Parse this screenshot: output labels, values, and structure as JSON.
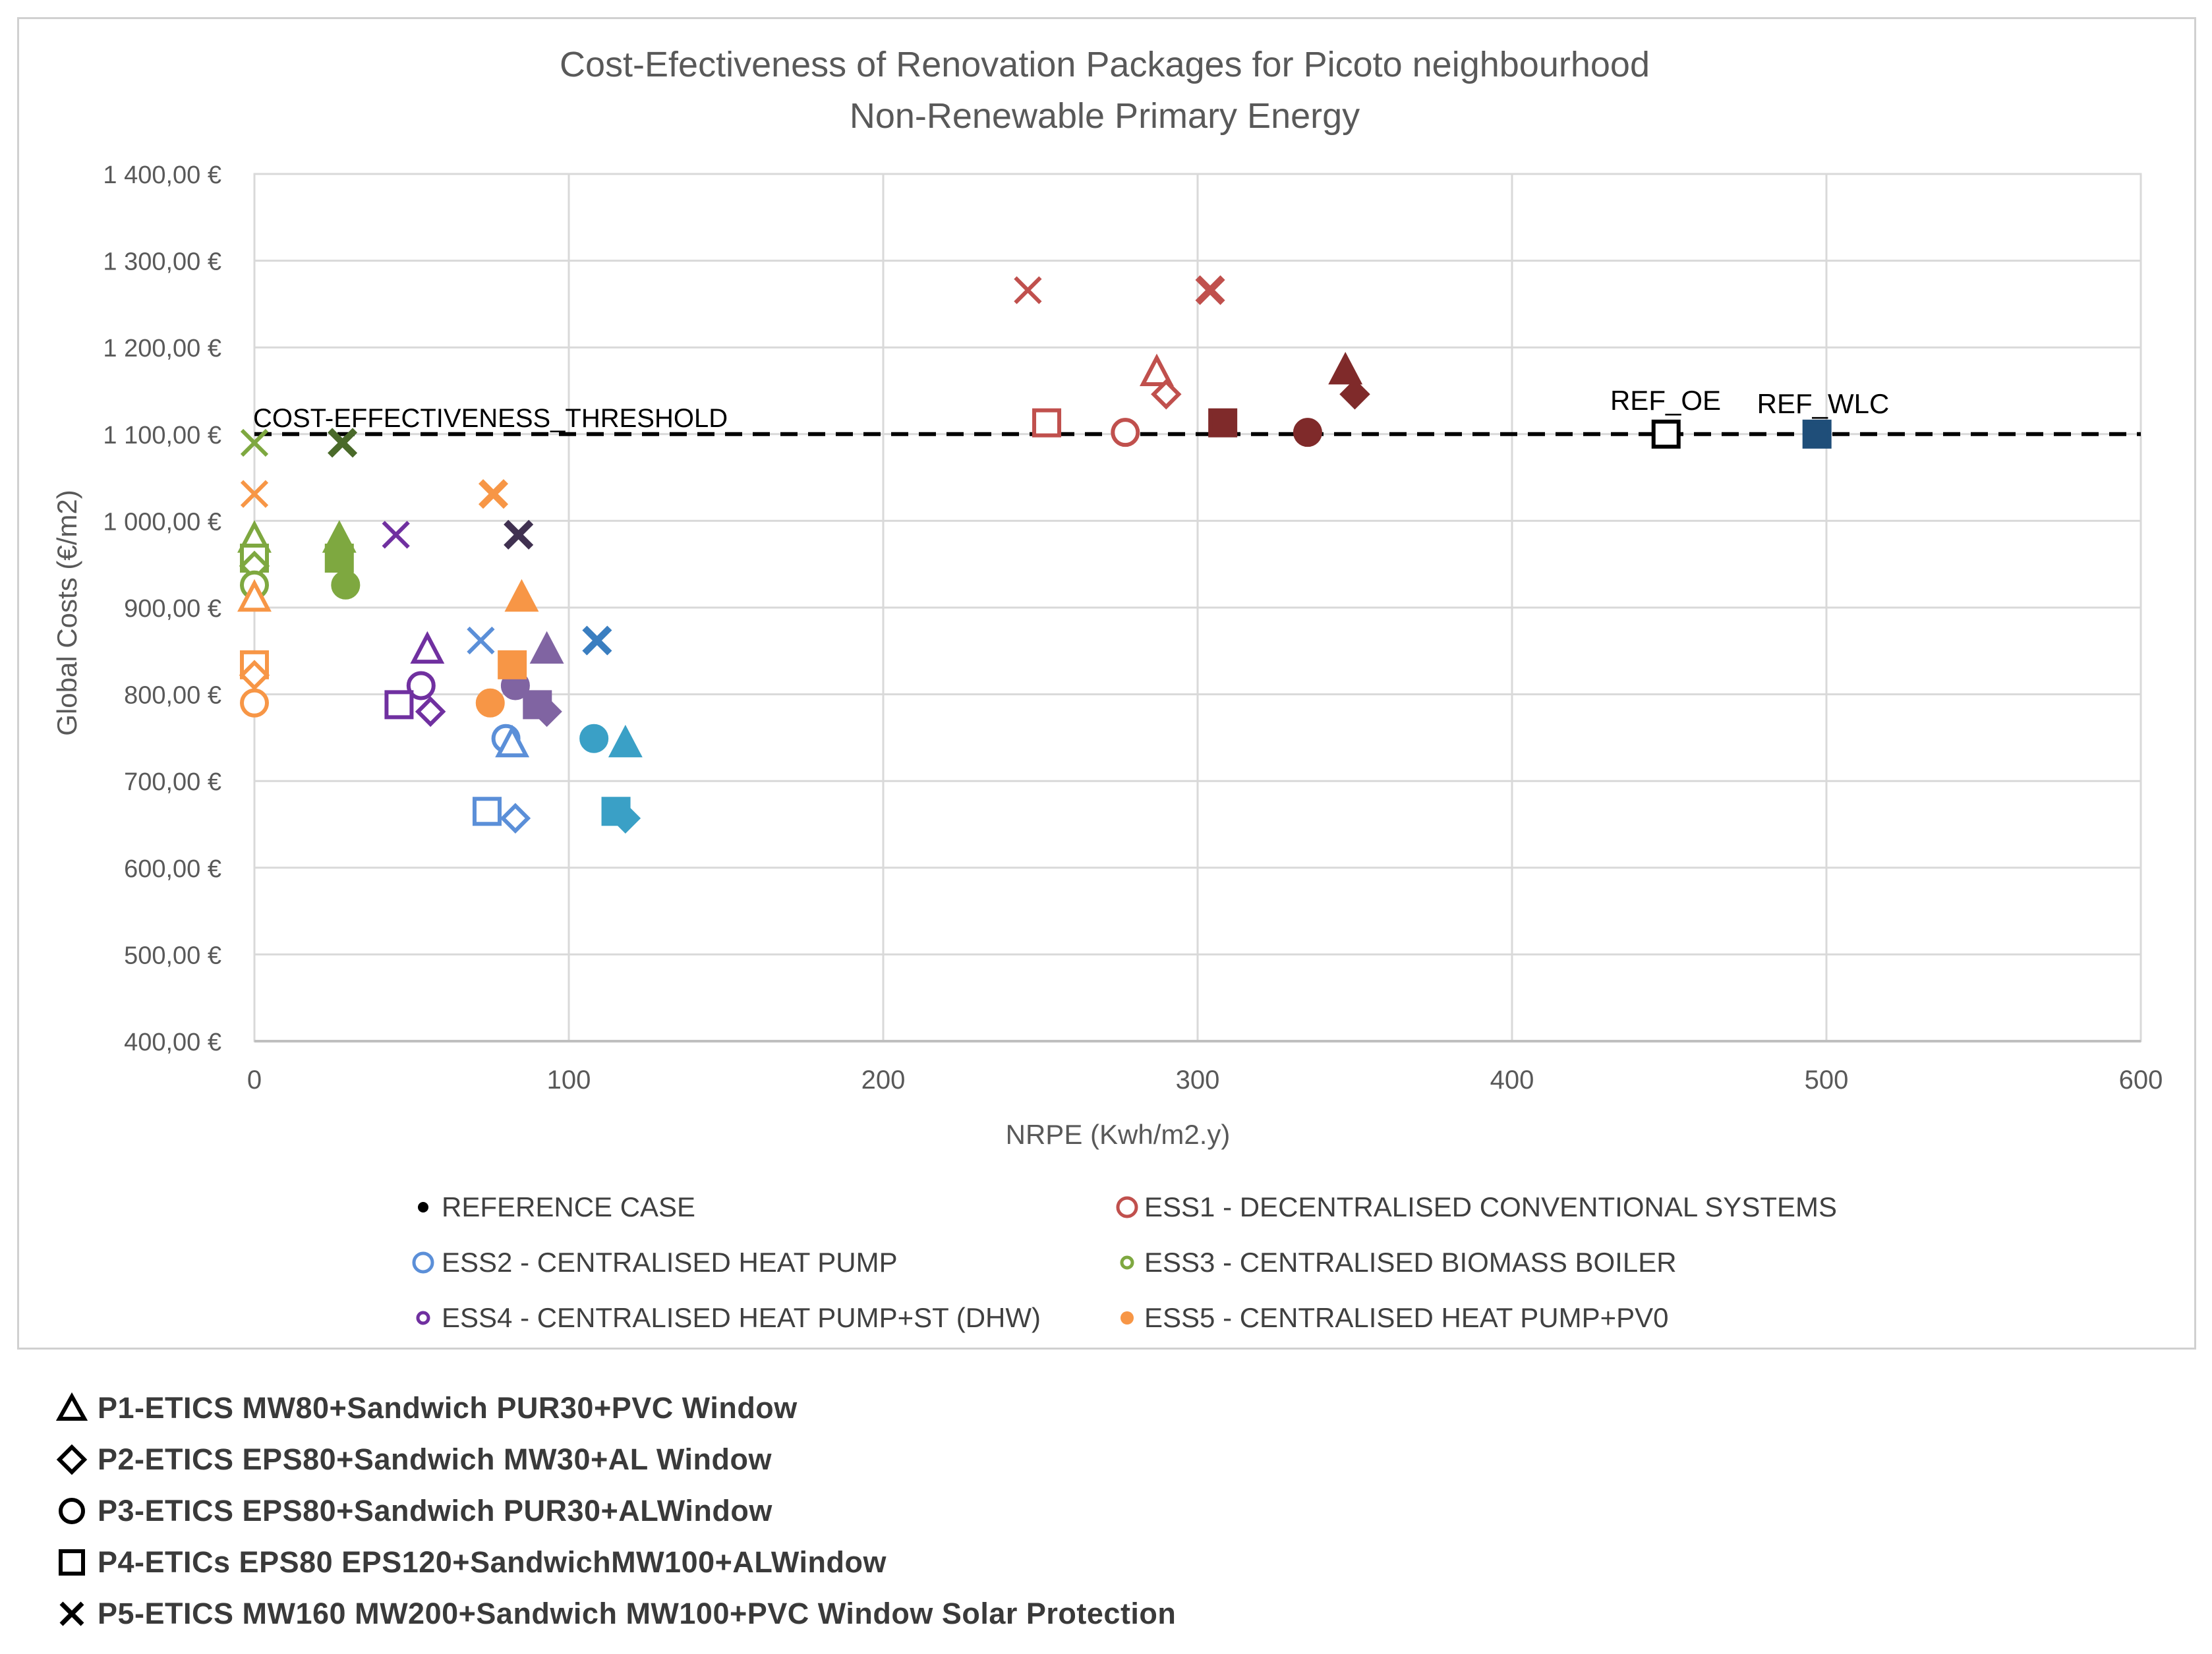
{
  "chart_data": {
    "type": "scatter",
    "title": "Cost-Efectiveness of Renovation Packages for Picoto neighbourhood",
    "subtitle": "Non-Renewable Primary Energy",
    "xlabel": "NRPE (Kwh/m2.y)",
    "ylabel": "Global Costs (€/m2)",
    "xlim": [
      0,
      600
    ],
    "ylim": [
      400,
      1400
    ],
    "x_ticks": [
      0,
      100,
      200,
      300,
      400,
      500,
      600
    ],
    "x_tick_labels": [
      "0",
      "100",
      "200",
      "300",
      "400",
      "500",
      "600"
    ],
    "y_ticks": [
      400,
      500,
      600,
      700,
      800,
      900,
      1000,
      1100,
      1200,
      1300,
      1400
    ],
    "y_tick_labels": [
      "400,00 €",
      "500,00 €",
      "600,00 €",
      "700,00 €",
      "800,00 €",
      "900,00 €",
      "1 000,00 €",
      "1 100,00 €",
      "1 200,00 €",
      "1 300,00 €",
      "1 400,00 €"
    ],
    "grid": true,
    "threshold": {
      "label": "COST-EFFECTIVENESS_THRESHOLD",
      "y": 1100
    },
    "annotations": [
      {
        "text": "REF_OE",
        "x": 449,
        "y": 1122
      },
      {
        "text": "REF_WLC",
        "x": 496,
        "y": 1118
      }
    ],
    "series_legend": [
      {
        "key": "REF",
        "label": "REFERENCE CASE",
        "marker": "filled-dot"
      },
      {
        "key": "ESS1",
        "label": "ESS1 - DECENTRALISED CONVENTIONAL SYSTEMS",
        "marker": "open-circle"
      },
      {
        "key": "ESS2",
        "label": "ESS2 - CENTRALISED HEAT PUMP",
        "marker": "open-circle"
      },
      {
        "key": "ESS3",
        "label": "ESS3 - CENTRALISED BIOMASS BOILER",
        "marker": "small-open-circle"
      },
      {
        "key": "ESS4",
        "label": "ESS4 - CENTRALISED HEAT PUMP+ST (DHW)",
        "marker": "small-open-circle"
      },
      {
        "key": "ESS5",
        "label": "ESS5 - CENTRALISED HEAT PUMP+PV0",
        "marker": "filled-dot"
      }
    ],
    "package_legend": [
      {
        "shape": "triangle",
        "label": "P1-ETICS MW80+Sandwich PUR30+PVC Window"
      },
      {
        "shape": "diamond",
        "label": "P2-ETICS EPS80+Sandwich MW30+AL Window"
      },
      {
        "shape": "circle",
        "label": "P3-ETICS EPS80+Sandwich PUR30+ALWindow"
      },
      {
        "shape": "square",
        "label": "P4-ETICs EPS80 EPS120+SandwichMW100+ALWindow"
      },
      {
        "shape": "x",
        "label": "P5-ETICS MW160 MW200+Sandwich MW100+PVC Window Solar Protection"
      }
    ],
    "colors": {
      "REF": "#000000",
      "ESS1_light": "#c0504d",
      "ESS1_dark": "#7f2a2a",
      "ESS2_light": "#5b8fd8",
      "ESS2_dark": "#3aa0c6",
      "ESS3_light": "#7ea840",
      "ESS3_dark": "#4a6a2a",
      "ESS4_light": "#7030a0",
      "ESS4_dark": "#403151",
      "ESS5": "#f79646",
      "REF_WLC": "#1f4e79"
    },
    "points": [
      {
        "series": "REF",
        "variant": "OE",
        "shape": "square",
        "filled": false,
        "color": "#000000",
        "x": 449,
        "y": 1100
      },
      {
        "series": "REF",
        "variant": "WLC",
        "shape": "square",
        "filled": true,
        "color": "#1f4e79",
        "x": 497,
        "y": 1100
      },
      {
        "series": "ESS1",
        "variant": "OE",
        "shape": "x",
        "filled": false,
        "color": "#c0504d",
        "x": 246,
        "y": 1266
      },
      {
        "series": "ESS1",
        "variant": "OE",
        "shape": "triangle",
        "filled": false,
        "color": "#c0504d",
        "x": 287,
        "y": 1172
      },
      {
        "series": "ESS1",
        "variant": "OE",
        "shape": "diamond",
        "filled": false,
        "color": "#c0504d",
        "x": 290,
        "y": 1146
      },
      {
        "series": "ESS1",
        "variant": "OE",
        "shape": "square",
        "filled": false,
        "color": "#c0504d",
        "x": 252,
        "y": 1113
      },
      {
        "series": "ESS1",
        "variant": "OE",
        "shape": "circle",
        "filled": false,
        "color": "#c0504d",
        "x": 277,
        "y": 1102
      },
      {
        "series": "ESS1",
        "variant": "WLC",
        "shape": "x",
        "filled": true,
        "color": "#c0504d",
        "x": 304,
        "y": 1266
      },
      {
        "series": "ESS1",
        "variant": "WLC",
        "shape": "triangle",
        "filled": true,
        "color": "#7f2a2a",
        "x": 347,
        "y": 1174
      },
      {
        "series": "ESS1",
        "variant": "WLC",
        "shape": "diamond",
        "filled": true,
        "color": "#7f2a2a",
        "x": 350,
        "y": 1146
      },
      {
        "series": "ESS1",
        "variant": "WLC",
        "shape": "square",
        "filled": true,
        "color": "#7f2a2a",
        "x": 308,
        "y": 1113
      },
      {
        "series": "ESS1",
        "variant": "WLC",
        "shape": "circle",
        "filled": true,
        "color": "#7f2a2a",
        "x": 335,
        "y": 1102
      },
      {
        "series": "ESS2",
        "variant": "OE",
        "shape": "x",
        "filled": false,
        "color": "#5b8fd8",
        "x": 72,
        "y": 862
      },
      {
        "series": "ESS2",
        "variant": "OE",
        "shape": "circle",
        "filled": false,
        "color": "#5b8fd8",
        "x": 80,
        "y": 749
      },
      {
        "series": "ESS2",
        "variant": "OE",
        "shape": "triangle",
        "filled": false,
        "color": "#5b8fd8",
        "x": 82,
        "y": 744
      },
      {
        "series": "ESS2",
        "variant": "OE",
        "shape": "square",
        "filled": false,
        "color": "#5b8fd8",
        "x": 74,
        "y": 665
      },
      {
        "series": "ESS2",
        "variant": "OE",
        "shape": "diamond",
        "filled": false,
        "color": "#5b8fd8",
        "x": 83,
        "y": 657
      },
      {
        "series": "ESS2",
        "variant": "WLC",
        "shape": "x",
        "filled": true,
        "color": "#3a7ec0",
        "x": 109,
        "y": 862
      },
      {
        "series": "ESS2",
        "variant": "WLC",
        "shape": "circle",
        "filled": true,
        "color": "#3aa0c6",
        "x": 108,
        "y": 749
      },
      {
        "series": "ESS2",
        "variant": "WLC",
        "shape": "triangle",
        "filled": true,
        "color": "#3aa0c6",
        "x": 118,
        "y": 744
      },
      {
        "series": "ESS2",
        "variant": "WLC",
        "shape": "square",
        "filled": true,
        "color": "#3aa0c6",
        "x": 115,
        "y": 665
      },
      {
        "series": "ESS2",
        "variant": "WLC",
        "shape": "diamond",
        "filled": true,
        "color": "#3aa0c6",
        "x": 118,
        "y": 657
      },
      {
        "series": "ESS3",
        "variant": "OE",
        "shape": "x",
        "filled": false,
        "color": "#7ea840",
        "x": 0,
        "y": 1090
      },
      {
        "series": "ESS3",
        "variant": "OE",
        "shape": "triangle",
        "filled": false,
        "color": "#7ea840",
        "x": 0,
        "y": 980
      },
      {
        "series": "ESS3",
        "variant": "OE",
        "shape": "square",
        "filled": false,
        "color": "#7ea840",
        "x": 0,
        "y": 957
      },
      {
        "series": "ESS3",
        "variant": "OE",
        "shape": "diamond",
        "filled": false,
        "color": "#7ea840",
        "x": 0,
        "y": 948
      },
      {
        "series": "ESS3",
        "variant": "OE",
        "shape": "circle",
        "filled": false,
        "color": "#7ea840",
        "x": 0,
        "y": 926
      },
      {
        "series": "ESS3",
        "variant": "WLC",
        "shape": "x",
        "filled": true,
        "color": "#4a6a2a",
        "x": 28,
        "y": 1090
      },
      {
        "series": "ESS3",
        "variant": "WLC",
        "shape": "triangle",
        "filled": true,
        "color": "#7ea840",
        "x": 27,
        "y": 980
      },
      {
        "series": "ESS3",
        "variant": "WLC",
        "shape": "square",
        "filled": true,
        "color": "#7ea840",
        "x": 27,
        "y": 957
      },
      {
        "series": "ESS3",
        "variant": "WLC",
        "shape": "circle",
        "filled": true,
        "color": "#7ea840",
        "x": 29,
        "y": 926
      },
      {
        "series": "ESS4",
        "variant": "OE",
        "shape": "x",
        "filled": false,
        "color": "#7030a0",
        "x": 45,
        "y": 984
      },
      {
        "series": "ESS4",
        "variant": "OE",
        "shape": "triangle",
        "filled": false,
        "color": "#7030a0",
        "x": 55,
        "y": 852
      },
      {
        "series": "ESS4",
        "variant": "OE",
        "shape": "circle",
        "filled": false,
        "color": "#7030a0",
        "x": 53,
        "y": 810
      },
      {
        "series": "ESS4",
        "variant": "OE",
        "shape": "square",
        "filled": false,
        "color": "#7030a0",
        "x": 46,
        "y": 788
      },
      {
        "series": "ESS4",
        "variant": "OE",
        "shape": "diamond",
        "filled": false,
        "color": "#7030a0",
        "x": 56,
        "y": 780
      },
      {
        "series": "ESS4",
        "variant": "WLC",
        "shape": "x",
        "filled": true,
        "color": "#403151",
        "x": 84,
        "y": 984
      },
      {
        "series": "ESS4",
        "variant": "WLC",
        "shape": "triangle",
        "filled": true,
        "color": "#8064a2",
        "x": 93,
        "y": 852
      },
      {
        "series": "ESS4",
        "variant": "WLC",
        "shape": "circle",
        "filled": true,
        "color": "#8064a2",
        "x": 83,
        "y": 810
      },
      {
        "series": "ESS4",
        "variant": "WLC",
        "shape": "square",
        "filled": true,
        "color": "#8064a2",
        "x": 90,
        "y": 788
      },
      {
        "series": "ESS4",
        "variant": "WLC",
        "shape": "diamond",
        "filled": true,
        "color": "#8064a2",
        "x": 93,
        "y": 780
      },
      {
        "series": "ESS5",
        "variant": "OE",
        "shape": "x",
        "filled": false,
        "color": "#f79646",
        "x": 0,
        "y": 1031
      },
      {
        "series": "ESS5",
        "variant": "OE",
        "shape": "triangle",
        "filled": false,
        "color": "#f79646",
        "x": 0,
        "y": 912
      },
      {
        "series": "ESS5",
        "variant": "OE",
        "shape": "square",
        "filled": false,
        "color": "#f79646",
        "x": 0,
        "y": 834
      },
      {
        "series": "ESS5",
        "variant": "OE",
        "shape": "diamond",
        "filled": false,
        "color": "#f79646",
        "x": 0,
        "y": 822
      },
      {
        "series": "ESS5",
        "variant": "OE",
        "shape": "circle",
        "filled": false,
        "color": "#f79646",
        "x": 0,
        "y": 790
      },
      {
        "series": "ESS5",
        "variant": "WLC",
        "shape": "x",
        "filled": true,
        "color": "#f79646",
        "x": 76,
        "y": 1031
      },
      {
        "series": "ESS5",
        "variant": "WLC",
        "shape": "triangle",
        "filled": true,
        "color": "#f79646",
        "x": 85,
        "y": 912
      },
      {
        "series": "ESS5",
        "variant": "WLC",
        "shape": "square",
        "filled": true,
        "color": "#f79646",
        "x": 82,
        "y": 834
      },
      {
        "series": "ESS5",
        "variant": "WLC",
        "shape": "circle",
        "filled": true,
        "color": "#f79646",
        "x": 75,
        "y": 790
      }
    ]
  }
}
